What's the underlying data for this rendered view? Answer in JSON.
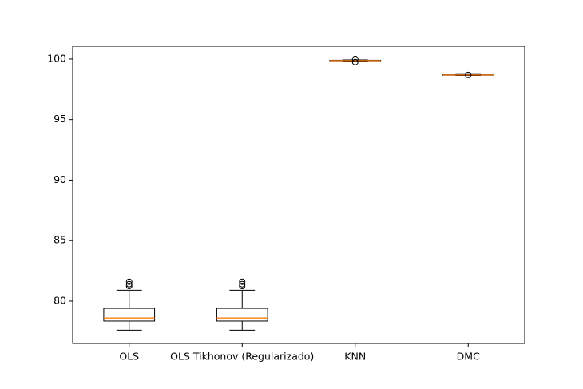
{
  "chart_data": {
    "type": "box",
    "categories": [
      "OLS",
      "OLS Tikhonov (Regularizado)",
      "KNN",
      "DMC"
    ],
    "boxes": [
      {
        "whislo": 77.6,
        "q1": 78.35,
        "med": 78.6,
        "q3": 79.4,
        "whishi": 80.9,
        "fliers": [
          81.25,
          81.4,
          81.6
        ]
      },
      {
        "whislo": 77.6,
        "q1": 78.35,
        "med": 78.6,
        "q3": 79.4,
        "whishi": 80.9,
        "fliers": [
          81.25,
          81.4,
          81.6
        ]
      },
      {
        "whislo": 99.8,
        "q1": 99.85,
        "med": 99.87,
        "q3": 99.9,
        "whishi": 99.93,
        "fliers": [
          99.75,
          100.0
        ]
      },
      {
        "whislo": 98.64,
        "q1": 98.66,
        "med": 98.68,
        "q3": 98.7,
        "whishi": 98.72,
        "fliers": [
          98.68
        ]
      }
    ],
    "color": "#000000",
    "median_color": "#ff7f0e",
    "ylim": [
      76.5,
      101.05
    ],
    "yticks": [
      80,
      85,
      90,
      95,
      100
    ]
  }
}
